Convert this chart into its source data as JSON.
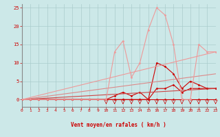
{
  "bg_color": "#cce8e8",
  "grid_color": "#aacccc",
  "xlabel": "Vent moyen/en rafales ( km/h )",
  "xlim": [
    0,
    23
  ],
  "ylim": [
    -2,
    26
  ],
  "xticks": [
    0,
    1,
    2,
    3,
    4,
    5,
    6,
    7,
    8,
    9,
    10,
    11,
    12,
    13,
    14,
    15,
    16,
    17,
    18,
    19,
    20,
    21,
    22,
    23
  ],
  "yticks": [
    0,
    5,
    10,
    15,
    20,
    25
  ],
  "lines": [
    {
      "x": [
        0,
        1,
        2,
        3,
        4,
        5,
        6,
        7,
        8,
        9,
        10,
        11,
        12,
        13,
        14,
        15,
        16,
        17,
        18,
        19,
        20,
        21,
        22,
        23
      ],
      "y": [
        0,
        0,
        0,
        0,
        0,
        0,
        0,
        0,
        0,
        0,
        0,
        0,
        0,
        0,
        0,
        0,
        0,
        0,
        0,
        0,
        0,
        0,
        0,
        0
      ],
      "color": "#cc0000",
      "lw": 0.8,
      "marker": "D",
      "ms": 1.5
    },
    {
      "x": [
        0,
        1,
        2,
        3,
        4,
        5,
        6,
        7,
        8,
        9,
        10,
        11,
        12,
        13,
        14,
        15,
        16,
        17,
        18,
        19,
        20,
        21,
        22,
        23
      ],
      "y": [
        0,
        0,
        0,
        0,
        0,
        0,
        0,
        0,
        0,
        0,
        0,
        1,
        2,
        1,
        2,
        0,
        3,
        3,
        4,
        2,
        3,
        3,
        3,
        3
      ],
      "color": "#cc0000",
      "lw": 0.8,
      "marker": "D",
      "ms": 1.5
    },
    {
      "x": [
        0,
        1,
        2,
        3,
        4,
        5,
        6,
        7,
        8,
        9,
        10,
        11,
        12,
        13,
        14,
        15,
        16,
        17,
        18,
        19,
        20,
        21,
        22,
        23
      ],
      "y": [
        0,
        0,
        0,
        0,
        0,
        0,
        0,
        0,
        0,
        0,
        0,
        0,
        0,
        0,
        0,
        0,
        10,
        9,
        7,
        3,
        5,
        4,
        3,
        3
      ],
      "color": "#cc0000",
      "lw": 0.8,
      "marker": "D",
      "ms": 1.5
    },
    {
      "x": [
        0,
        23
      ],
      "y": [
        0,
        3
      ],
      "color": "#cc4444",
      "lw": 0.8,
      "marker": "none",
      "ms": 0
    },
    {
      "x": [
        0,
        23
      ],
      "y": [
        0,
        7
      ],
      "color": "#dd8888",
      "lw": 0.8,
      "marker": "none",
      "ms": 0
    },
    {
      "x": [
        0,
        23
      ],
      "y": [
        0,
        13
      ],
      "color": "#ee9999",
      "lw": 0.8,
      "marker": "none",
      "ms": 0
    },
    {
      "x": [
        0,
        1,
        2,
        3,
        4,
        5,
        6,
        7,
        8,
        9,
        10,
        11,
        12,
        13,
        14,
        15,
        16,
        17,
        18,
        19,
        20,
        21,
        22,
        23
      ],
      "y": [
        0,
        0,
        0,
        0,
        0,
        0,
        0,
        0,
        0,
        0,
        0,
        13,
        16,
        6,
        10,
        19,
        25,
        23,
        15,
        0,
        0,
        15,
        13,
        13
      ],
      "color": "#ee9999",
      "lw": 0.8,
      "marker": "D",
      "ms": 1.5
    }
  ],
  "arrows_x": [
    10,
    11,
    12,
    13,
    14,
    15,
    16,
    17,
    18,
    19,
    20,
    21,
    22,
    23
  ]
}
